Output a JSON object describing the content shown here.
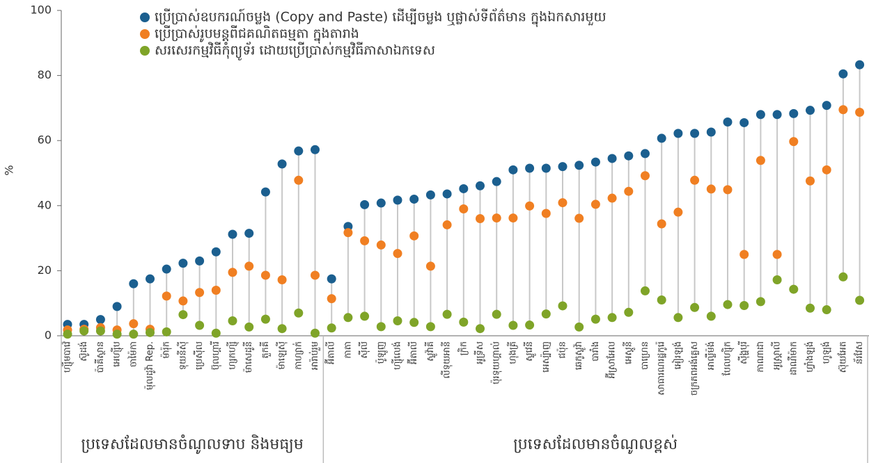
{
  "chart_data": {
    "type": "dot",
    "y_label": "%",
    "ylim": [
      0,
      100
    ],
    "yticks": [
      0,
      20,
      40,
      60,
      80,
      100
    ],
    "groups": [
      {
        "name": "ប្រទេសដែលមានចំណូលទាប និងមធ្យម",
        "categories": [
          "ហ្ស៊ីមបាវ៉េ",
          "ស៊ូដង់",
          "ប៉ាគីស្ថាន",
          "អេហ្ស៊ីប",
          "ចាម៉ៃកា",
          "ម៉ុលដូវ៉ា Rep.",
          "ម៉ារ៉ុក",
          "ទុយនីស៊ី",
          "ប្រេស៊ីល",
          "ប៊ុលហ្គារី",
          "ហ្សកហ្ស៊ី",
          "ម៉ាសេដូនី",
          "តួកគី",
          "ម៉ាឡេស៊ី",
          "កាហ្សាក់",
          "អារ៉ាប់រួម"
        ]
      },
      {
        "name": "ប្រទេសដែលមានចំណូលខ្ពស់",
        "categories": [
          "អ៊ីតាលី",
          "កាតា",
          "ស៊ីលី",
          "ប៉ូឡូញ",
          "ហ្ស៊ីលេង់",
          "អ៊ីតាលី",
          "ស្លូវ៉ាគី",
          "លីទុយអានី",
          "ក្រិក",
          "អូទ្រីស",
          "ប៉ុរទុយហ្គាល់",
          "ហុងគ្រី",
          "ស្លូវេនី",
          "អេស្ប៉ាញ",
          "ជប៉ុន",
          "ឆេកូស្លូវ៉ា",
          "បារាំង",
          "អ៊ីស្រាអែល",
          "អេស្តូនី",
          "បាហ្រេន",
          "សាធារណរដ្ឋកូរ៉េ",
          "អៀរឡង់",
          "ចក្រភពអង់គ្លេស",
          "អាល្លឺម៉ង់",
          "បែលហ្ស៊ិក",
          "ស៊ីង្ហបុរី",
          "កាណាដា",
          "អូស្ត្រាលី",
          "ដាណឺម៉ាក",
          "ហ្វាំងឡង់",
          "ហូឡង់",
          "ស៊ុយអែត",
          "ន័រវែស"
        ]
      }
    ],
    "series": [
      {
        "name": "ប្រើប្រាស់ឧបករណ៍ចម្លង (Copy and Paste) ដើម្បីចម្លង ឬផ្លាស់ទីព័ត៌មាន ក្នុងឯកសារមួយ",
        "color": "#1b5f8f",
        "values": [
          3.5,
          3.5,
          5,
          9,
          16,
          17.5,
          20.5,
          22.3,
          23,
          25.8,
          31.2,
          31.5,
          44.2,
          52.8,
          56.8,
          57.2,
          17.5,
          33.6,
          40.3,
          40.8,
          41.7,
          42,
          43.3,
          43.6,
          45.2,
          46.1,
          47.4,
          51,
          51.5,
          51.5,
          52,
          52.4,
          53.4,
          54.5,
          55.3,
          56,
          60.7,
          62.2,
          62.2,
          62.6,
          65.7,
          65.5,
          68,
          68,
          68.3,
          69.3,
          70.8,
          80.5,
          83.3
        ]
      },
      {
        "name": "ប្រើប្រាស់រូបមន្តពីជគណិតធម្មតា ក្នុងតារាង",
        "color": "#f07f22",
        "values": [
          1.8,
          2,
          2.5,
          1.8,
          3.7,
          2,
          12.2,
          10.7,
          13.3,
          14,
          19.5,
          21.4,
          18.6,
          17.2,
          47.8,
          18.6,
          11.4,
          31.7,
          29.2,
          27.9,
          25.3,
          30.7,
          21.4,
          34.1,
          39,
          36,
          36.2,
          36.2,
          39.9,
          37.6,
          40.9,
          36.1,
          40.4,
          42.3,
          44.4,
          49.2,
          34.4,
          38,
          47.8,
          45.1,
          44.9,
          25,
          53.9,
          25,
          59.7,
          47.6,
          51,
          69.5,
          68.7
        ]
      },
      {
        "name": "សរសេរកម្មវិធីកុំព្យូទ័រ ដោយប្រើប្រាស់កម្មវិធីភាសាឯកទេស",
        "color": "#7fa428",
        "values": [
          0.5,
          1.5,
          1.5,
          0.5,
          0.5,
          1.0,
          1.2,
          6.5,
          3.2,
          0.8,
          4.6,
          2.7,
          5.1,
          2.2,
          7,
          0.8,
          2.4,
          5.6,
          6,
          2.8,
          4.6,
          4.1,
          2.8,
          6.6,
          4.2,
          2.2,
          6.6,
          3.2,
          3.3,
          6.7,
          9.2,
          2.7,
          5.1,
          5.6,
          7.2,
          13.8,
          11,
          5.6,
          8.7,
          6,
          9.6,
          9.3,
          10.5,
          17.2,
          14.3,
          8.5,
          8,
          18.1,
          10.9
        ]
      }
    ]
  }
}
